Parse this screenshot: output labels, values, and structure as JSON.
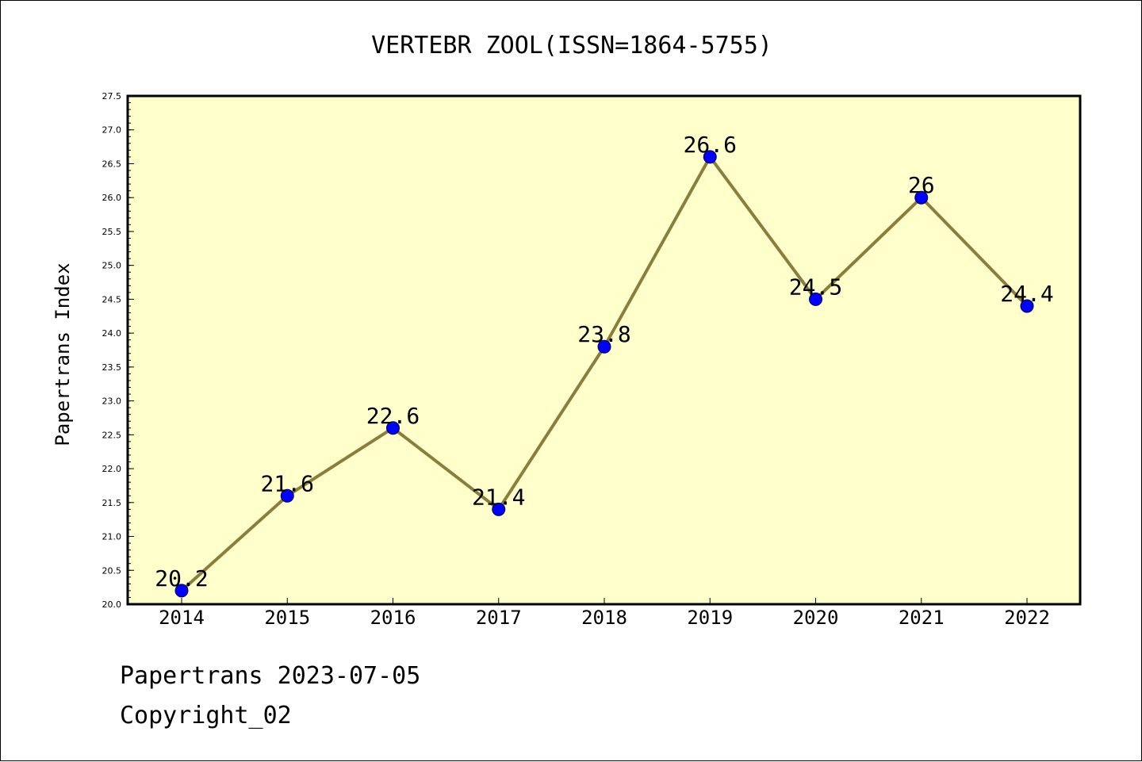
{
  "footer": {
    "line1": "Papertrans 2023-07-05",
    "line2": "Copyright_02"
  },
  "colors": {
    "plot_background": "#ffffcc",
    "line": "#8b7d3a",
    "marker": "#0000ff",
    "axis": "#000000"
  },
  "chart_data": {
    "type": "line",
    "title": "VERTEBR ZOOL(ISSN=1864-5755)",
    "xlabel": "",
    "ylabel": "Papertrans Index",
    "categories": [
      "2014",
      "2015",
      "2016",
      "2017",
      "2018",
      "2019",
      "2020",
      "2021",
      "2022"
    ],
    "series": [
      {
        "values": [
          20.2,
          21.6,
          22.6,
          21.4,
          23.8,
          26.6,
          24.5,
          26.0,
          24.4
        ],
        "data_labels": [
          "20.2",
          "21.6",
          "22.6",
          "21.4",
          "23.8",
          "26.6",
          "24.5",
          "26",
          "24.4"
        ]
      }
    ],
    "ylim": [
      20.0,
      27.5
    ],
    "yticks": [
      "20.0",
      "20.5",
      "21.0",
      "21.5",
      "22.0",
      "22.5",
      "23.0",
      "23.5",
      "24.0",
      "24.5",
      "25.0",
      "25.5",
      "26.0",
      "26.5",
      "27.0",
      "27.5"
    ],
    "grid": false,
    "legend": "none"
  }
}
